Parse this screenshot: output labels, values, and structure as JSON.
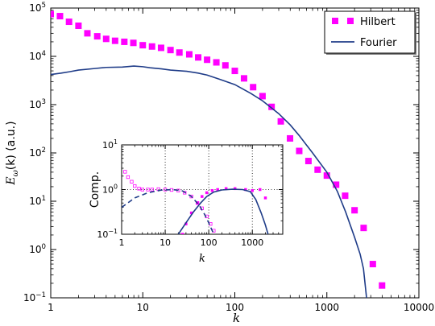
{
  "chart_data": [
    {
      "type": "scatter+line",
      "xscale": "log",
      "yscale": "log",
      "xlim": [
        1,
        10000
      ],
      "ylim": [
        0.1,
        100000
      ],
      "xlabel": "k",
      "ylabel": "E_ω(k) (a.u.)",
      "ylabel_parts": {
        "main": "E",
        "sub": "ω",
        "rest": "(k) (a.u.)"
      },
      "xticks": [
        {
          "value": 1,
          "label": "1"
        },
        {
          "value": 10,
          "label": "10"
        },
        {
          "value": 100,
          "label": "100"
        },
        {
          "value": 1000,
          "label": "1000"
        },
        {
          "value": 10000,
          "label": "10000"
        }
      ],
      "yticks": [
        {
          "value": 0.1,
          "base": "10",
          "exp": "−1"
        },
        {
          "value": 1,
          "base": "10",
          "exp": "0"
        },
        {
          "value": 10,
          "base": "10",
          "exp": "1"
        },
        {
          "value": 100,
          "base": "10",
          "exp": "2"
        },
        {
          "value": 1000,
          "base": "10",
          "exp": "3"
        },
        {
          "value": 10000,
          "base": "10",
          "exp": "4"
        },
        {
          "value": 100000,
          "base": "10",
          "exp": "5"
        }
      ],
      "legend": {
        "position": "top-right"
      },
      "series": [
        {
          "name": "Hilbert",
          "kind": "markers",
          "marker": "square",
          "color": "#ff00ff",
          "points": [
            [
              1.0,
              75000
            ],
            [
              1.26,
              68000
            ],
            [
              1.58,
              52000
            ],
            [
              2.0,
              43000
            ],
            [
              2.5,
              30000
            ],
            [
              3.2,
              26000
            ],
            [
              4.0,
              23000
            ],
            [
              5.0,
              21000
            ],
            [
              6.3,
              20000
            ],
            [
              7.9,
              19000
            ],
            [
              10,
              17000
            ],
            [
              12.6,
              16000
            ],
            [
              15.8,
              15000
            ],
            [
              20,
              13500
            ],
            [
              25,
              12000
            ],
            [
              32,
              11000
            ],
            [
              40,
              9500
            ],
            [
              50,
              8500
            ],
            [
              63,
              7500
            ],
            [
              79,
              6500
            ],
            [
              100,
              5000
            ],
            [
              126,
              3500
            ],
            [
              158,
              2300
            ],
            [
              200,
              1500
            ],
            [
              251,
              900
            ],
            [
              316,
              450
            ],
            [
              398,
              200
            ],
            [
              501,
              110
            ],
            [
              631,
              68
            ],
            [
              794,
              45
            ],
            [
              1000,
              34
            ],
            [
              1260,
              22
            ],
            [
              1580,
              13
            ],
            [
              2000,
              6.5
            ],
            [
              2510,
              2.8
            ],
            [
              3160,
              0.5
            ],
            [
              3980,
              0.18
            ]
          ]
        },
        {
          "name": "Fourier",
          "kind": "line",
          "color": "#1f3c88",
          "points": [
            [
              1,
              4200
            ],
            [
              1.3,
              4500
            ],
            [
              1.6,
              4800
            ],
            [
              2,
              5200
            ],
            [
              3,
              5600
            ],
            [
              4,
              5900
            ],
            [
              6,
              6000
            ],
            [
              8,
              6300
            ],
            [
              10,
              6100
            ],
            [
              12,
              5800
            ],
            [
              16,
              5500
            ],
            [
              20,
              5200
            ],
            [
              30,
              4900
            ],
            [
              40,
              4500
            ],
            [
              50,
              4100
            ],
            [
              70,
              3300
            ],
            [
              100,
              2600
            ],
            [
              150,
              1700
            ],
            [
              200,
              1200
            ],
            [
              300,
              650
            ],
            [
              400,
              380
            ],
            [
              500,
              230
            ],
            [
              700,
              100
            ],
            [
              1000,
              40
            ],
            [
              1300,
              16
            ],
            [
              1600,
              6
            ],
            [
              2000,
              1.8
            ],
            [
              2300,
              0.8
            ],
            [
              2500,
              0.4
            ],
            [
              2700,
              0.1
            ]
          ]
        }
      ]
    },
    {
      "type": "scatter+line",
      "role": "inset",
      "xscale": "log",
      "yscale": "log",
      "xlim": [
        1,
        5000
      ],
      "ylim": [
        0.1,
        10
      ],
      "xlabel": "k",
      "ylabel": "Comp.",
      "grid": "dotted vertical at 10, 100, 1000; dotted horizontal at 1",
      "xticks": [
        {
          "value": 1,
          "label": "1"
        },
        {
          "value": 10,
          "label": "10"
        },
        {
          "value": 100,
          "label": "100"
        },
        {
          "value": 1000,
          "label": "1000"
        }
      ],
      "yticks": [
        {
          "value": 0.1,
          "base": "10",
          "exp": "−1"
        },
        {
          "value": 1,
          "base": "10",
          "exp": "0"
        },
        {
          "value": 10,
          "base": "10",
          "exp": "1"
        }
      ],
      "series": [
        {
          "kind": "open-markers",
          "marker": "square",
          "color": "#ff00ff",
          "points": [
            [
              1.2,
              2.5
            ],
            [
              1.4,
              1.9
            ],
            [
              1.7,
              1.5
            ],
            [
              2,
              1.2
            ],
            [
              2.5,
              1.05
            ],
            [
              3,
              1.0
            ],
            [
              4,
              1.0
            ],
            [
              5,
              1.0
            ],
            [
              7,
              1.02
            ],
            [
              10,
              1.0
            ],
            [
              14,
              0.98
            ],
            [
              20,
              0.95
            ],
            [
              28,
              0.85
            ],
            [
              40,
              0.7
            ],
            [
              55,
              0.5
            ],
            [
              70,
              0.38
            ],
            [
              90,
              0.25
            ],
            [
              110,
              0.17
            ],
            [
              130,
              0.12
            ]
          ]
        },
        {
          "kind": "filled-markers",
          "marker": "square",
          "color": "#ff00ff",
          "points": [
            [
              25,
              0.1
            ],
            [
              30,
              0.17
            ],
            [
              40,
              0.3
            ],
            [
              55,
              0.5
            ],
            [
              70,
              0.7
            ],
            [
              90,
              0.85
            ],
            [
              120,
              0.95
            ],
            [
              160,
              1.0
            ],
            [
              250,
              1.05
            ],
            [
              400,
              1.05
            ],
            [
              700,
              1.0
            ],
            [
              1000,
              0.95
            ],
            [
              1500,
              1.0
            ],
            [
              2000,
              0.65
            ]
          ]
        },
        {
          "kind": "dashed-line",
          "color": "#1f3c88",
          "points": [
            [
              1,
              0.4
            ],
            [
              2,
              0.65
            ],
            [
              4,
              0.85
            ],
            [
              8,
              0.97
            ],
            [
              15,
              1.0
            ],
            [
              25,
              0.93
            ],
            [
              40,
              0.7
            ],
            [
              60,
              0.45
            ],
            [
              80,
              0.28
            ],
            [
              100,
              0.18
            ],
            [
              120,
              0.12
            ],
            [
              135,
              0.1
            ]
          ]
        },
        {
          "kind": "line",
          "color": "#1f3c88",
          "points": [
            [
              20,
              0.1
            ],
            [
              30,
              0.18
            ],
            [
              45,
              0.32
            ],
            [
              65,
              0.5
            ],
            [
              90,
              0.7
            ],
            [
              130,
              0.88
            ],
            [
              200,
              0.98
            ],
            [
              350,
              1.02
            ],
            [
              600,
              1.0
            ],
            [
              900,
              0.9
            ],
            [
              1200,
              0.6
            ],
            [
              1600,
              0.3
            ],
            [
              2000,
              0.16
            ],
            [
              2300,
              0.1
            ]
          ]
        }
      ]
    }
  ]
}
